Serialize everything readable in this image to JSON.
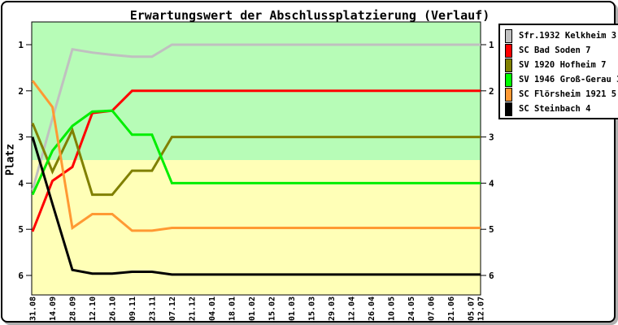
{
  "title": "Erwartungswert der Abschlussplatzierung (Verlauf)",
  "colors": {
    "band_top": "#b7fcb7",
    "band_bottom": "#ffffb7",
    "axis": "#000000"
  },
  "chart_data": {
    "type": "line",
    "title": "Erwartungswert der Abschlussplatzierung (Verlauf)",
    "xlabel": "",
    "ylabel": "Platz",
    "y_ticks": [
      1,
      2,
      3,
      4,
      5,
      6
    ],
    "y_inverted": true,
    "ylim": [
      0.5,
      6.45
    ],
    "grid": false,
    "legend_position": "top-right",
    "bands": [
      {
        "from": 0.5,
        "to": 3.5,
        "color": "#b7fcb7"
      },
      {
        "from": 3.5,
        "to": 6.45,
        "color": "#ffffb7"
      }
    ],
    "x_tick_labels": [
      "31.08",
      "14.09",
      "28.09",
      "12.10",
      "26.10",
      "09.11",
      "23.11",
      "07.12",
      "21.12",
      "04.01",
      "18.01",
      "01.02",
      "15.02",
      "01.03",
      "15.03",
      "29.03",
      "12.04",
      "26.04",
      "10.05",
      "24.05",
      "07.06",
      "21.06",
      "05.07",
      "12.07"
    ],
    "x_days": [
      0,
      14,
      28,
      42,
      56,
      70,
      84,
      98,
      112,
      126,
      140,
      154,
      168,
      182,
      196,
      210,
      224,
      238,
      252,
      266,
      280,
      294,
      308,
      315
    ],
    "series": [
      {
        "name": "Sfr.1932 Kelkheim 3",
        "color": "#c0c0c0",
        "values": [
          4.15,
          2.6,
          1.1,
          1.17,
          1.22,
          1.26,
          1.26,
          1,
          1,
          1,
          1,
          1,
          1,
          1,
          1,
          1,
          1,
          1,
          1,
          1,
          1,
          1,
          1,
          1
        ]
      },
      {
        "name": "SC Bad Soden 7",
        "color": "#ff0000",
        "values": [
          5.05,
          3.95,
          3.65,
          2.48,
          2.43,
          2,
          2,
          2,
          2,
          2,
          2,
          2,
          2,
          2,
          2,
          2,
          2,
          2,
          2,
          2,
          2,
          2,
          2,
          2
        ]
      },
      {
        "name": "SV 1920 Hofheim 7",
        "color": "#808000",
        "values": [
          2.7,
          3.75,
          2.85,
          4.25,
          4.25,
          3.73,
          3.73,
          3,
          3,
          3,
          3,
          3,
          3,
          3,
          3,
          3,
          3,
          3,
          3,
          3,
          3,
          3,
          3,
          3
        ]
      },
      {
        "name": "SV 1946 Groß-Gerau 3",
        "color": "#00ee00",
        "values": [
          4.25,
          3.3,
          2.76,
          2.45,
          2.43,
          2.95,
          2.95,
          4,
          4,
          4,
          4,
          4,
          4,
          4,
          4,
          4,
          4,
          4,
          4,
          4,
          4,
          4,
          4,
          4
        ]
      },
      {
        "name": "SC Flörsheim 1921 5",
        "color": "#ff9933",
        "values": [
          1.78,
          2.35,
          4.97,
          4.67,
          4.67,
          5.03,
          5.03,
          4.97,
          4.97,
          4.97,
          4.97,
          4.97,
          4.97,
          4.97,
          4.97,
          4.97,
          4.97,
          4.97,
          4.97,
          4.97,
          4.97,
          4.97,
          4.97,
          4.97
        ]
      },
      {
        "name": "SC Steinbach 4",
        "color": "#000000",
        "values": [
          3.0,
          4.45,
          5.88,
          5.96,
          5.96,
          5.92,
          5.92,
          5.98,
          5.98,
          5.98,
          5.98,
          5.98,
          5.98,
          5.98,
          5.98,
          5.98,
          5.98,
          5.98,
          5.98,
          5.98,
          5.98,
          5.98,
          5.98,
          5.98
        ]
      }
    ]
  },
  "legend": {
    "entries": [
      {
        "label": "Sfr.1932 Kelkheim 3",
        "color": "#c0c0c0"
      },
      {
        "label": "SC Bad Soden 7",
        "color": "#ff0000"
      },
      {
        "label": "SV 1920 Hofheim 7",
        "color": "#808000"
      },
      {
        "label": "SV 1946 Groß-Gerau 3",
        "color": "#00ff00"
      },
      {
        "label": "SC Flörsheim 1921 5",
        "color": "#ff9933"
      },
      {
        "label": "SC Steinbach 4",
        "color": "#000000"
      }
    ]
  }
}
